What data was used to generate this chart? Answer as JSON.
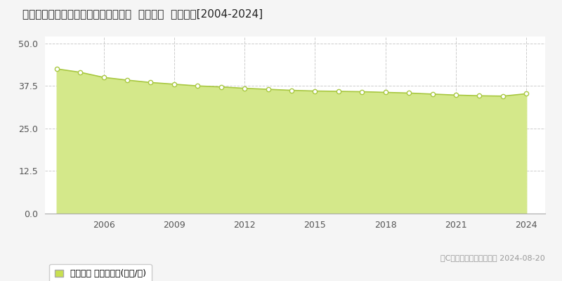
{
  "title": "愛知県知多市にしの台４丁目７番３外  地価公示  地価推移[2004-2024]",
  "years": [
    2004,
    2005,
    2006,
    2007,
    2008,
    2009,
    2010,
    2011,
    2012,
    2013,
    2014,
    2015,
    2016,
    2017,
    2018,
    2019,
    2020,
    2021,
    2022,
    2023,
    2024
  ],
  "values": [
    42.5,
    41.5,
    40.0,
    39.2,
    38.5,
    38.0,
    37.5,
    37.2,
    36.8,
    36.5,
    36.2,
    36.0,
    35.9,
    35.8,
    35.6,
    35.4,
    35.1,
    34.8,
    34.6,
    34.5,
    35.2
  ],
  "line_color": "#a8c840",
  "fill_color": "#d4e88a",
  "marker_color": "#ffffff",
  "marker_edge_color": "#a8c840",
  "background_color": "#f5f5f5",
  "plot_bg_color": "#ffffff",
  "grid_color": "#cccccc",
  "yticks": [
    0,
    12.5,
    25,
    37.5,
    50
  ],
  "ylim": [
    0,
    52
  ],
  "xlim": [
    2003.5,
    2024.8
  ],
  "xticks": [
    2006,
    2009,
    2012,
    2015,
    2018,
    2021,
    2024
  ],
  "legend_label": "地価公示 平均坪単価(万円/坪)",
  "legend_color": "#c8e050",
  "copyright_text": "（C）土地価格ドットコム 2024-08-20",
  "title_fontsize": 11,
  "axis_fontsize": 9,
  "legend_fontsize": 9,
  "copyright_fontsize": 8
}
